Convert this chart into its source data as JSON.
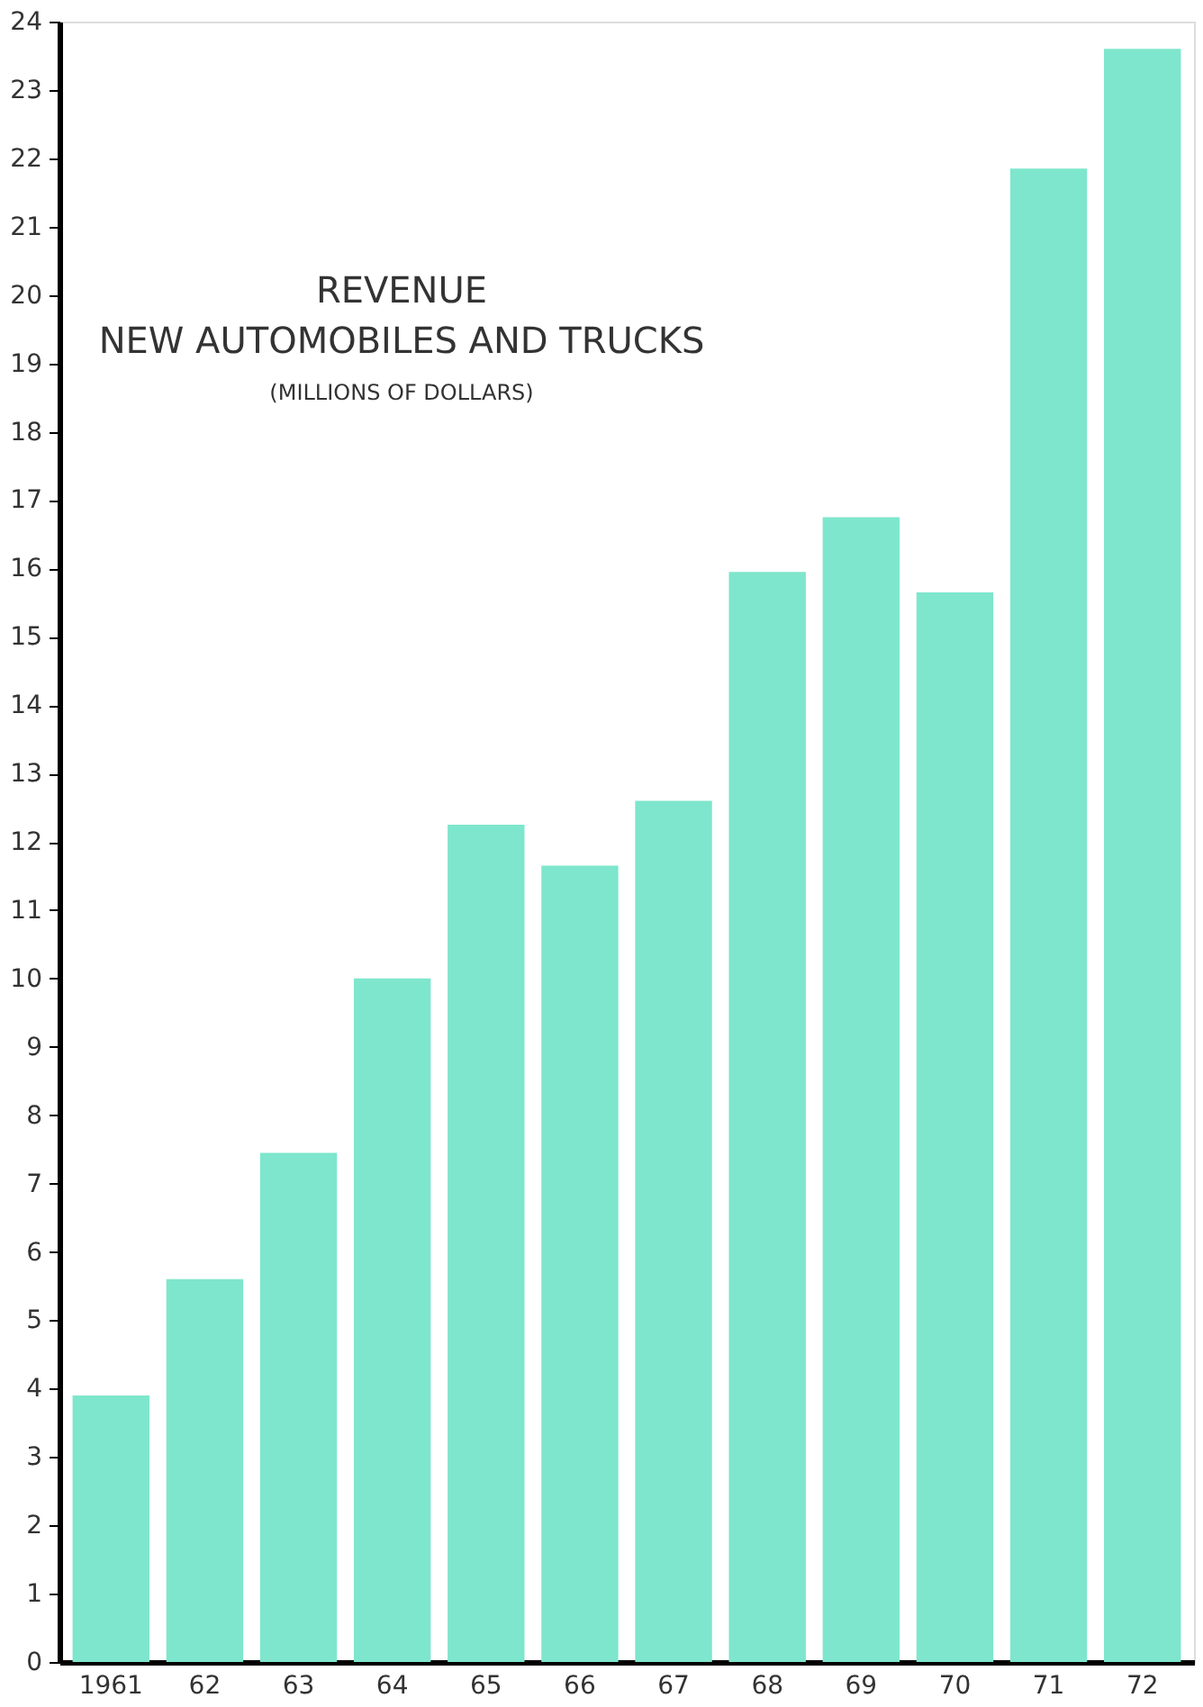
{
  "chart_data": {
    "type": "bar",
    "title": "REVENUE",
    "subtitle": "NEW AUTOMOBILES AND TRUCKS",
    "annotations": [
      "(MILLIONS OF DOLLARS)"
    ],
    "categories": [
      "1961",
      "62",
      "63",
      "64",
      "65",
      "66",
      "67",
      "68",
      "69",
      "70",
      "71",
      "72"
    ],
    "values": [
      3.9,
      5.6,
      7.45,
      10.0,
      12.25,
      11.65,
      12.6,
      15.95,
      16.75,
      15.65,
      21.85,
      23.6
    ],
    "color": "#7ee6cc",
    "ylim": [
      0,
      24
    ],
    "yticks": [
      0,
      1,
      2,
      3,
      4,
      5,
      6,
      7,
      8,
      9,
      10,
      11,
      12,
      13,
      14,
      15,
      16,
      17,
      18,
      19,
      20,
      21,
      22,
      23,
      24
    ],
    "grid": false
  }
}
